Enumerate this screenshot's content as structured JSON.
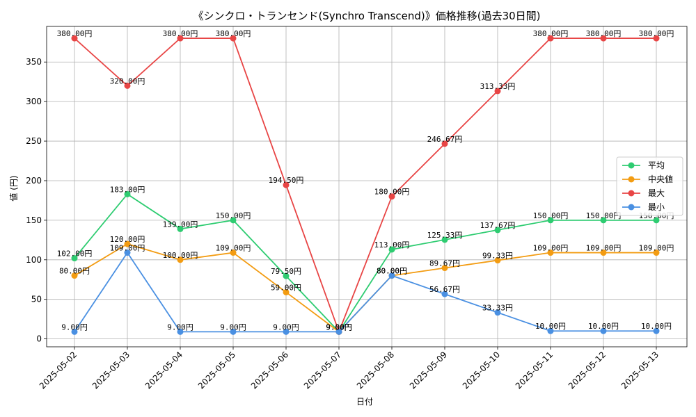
{
  "chart_data": {
    "type": "line",
    "title": "《シンクロ・トランセンド(Synchro Transcend)》価格推移(過去30日間)",
    "xlabel": "日付",
    "ylabel": "値 (円)",
    "ylim": [
      -10,
      395
    ],
    "yticks": [
      0,
      50,
      100,
      150,
      200,
      250,
      300,
      350
    ],
    "grid": true,
    "legend_position": "right",
    "value_suffix": "円",
    "categories": [
      "2025-05-02",
      "2025-05-03",
      "2025-05-04",
      "2025-05-05",
      "2025-05-06",
      "2025-05-07",
      "2025-05-08",
      "2025-05-09",
      "2025-05-10",
      "2025-05-11",
      "2025-05-12",
      "2025-05-13"
    ],
    "series": [
      {
        "name": "平均",
        "color": "#2ecc71",
        "values": [
          102.0,
          183.0,
          139.0,
          150.0,
          79.5,
          9.0,
          113.0,
          125.33,
          137.67,
          150.0,
          150.0,
          150.0
        ]
      },
      {
        "name": "中央値",
        "color": "#f39c12",
        "values": [
          80.0,
          120.0,
          100.0,
          109.0,
          59.0,
          9.0,
          80.0,
          89.67,
          99.33,
          109.0,
          109.0,
          109.0
        ]
      },
      {
        "name": "最大",
        "color": "#e84545",
        "values": [
          380.0,
          320.0,
          380.0,
          380.0,
          194.5,
          9.0,
          180.0,
          246.67,
          313.33,
          380.0,
          380.0,
          380.0
        ]
      },
      {
        "name": "最小",
        "color": "#4a90e2",
        "values": [
          9.0,
          109.0,
          9.0,
          9.0,
          9.0,
          9.0,
          80.0,
          56.67,
          33.33,
          10.0,
          10.0,
          10.0
        ]
      }
    ]
  }
}
